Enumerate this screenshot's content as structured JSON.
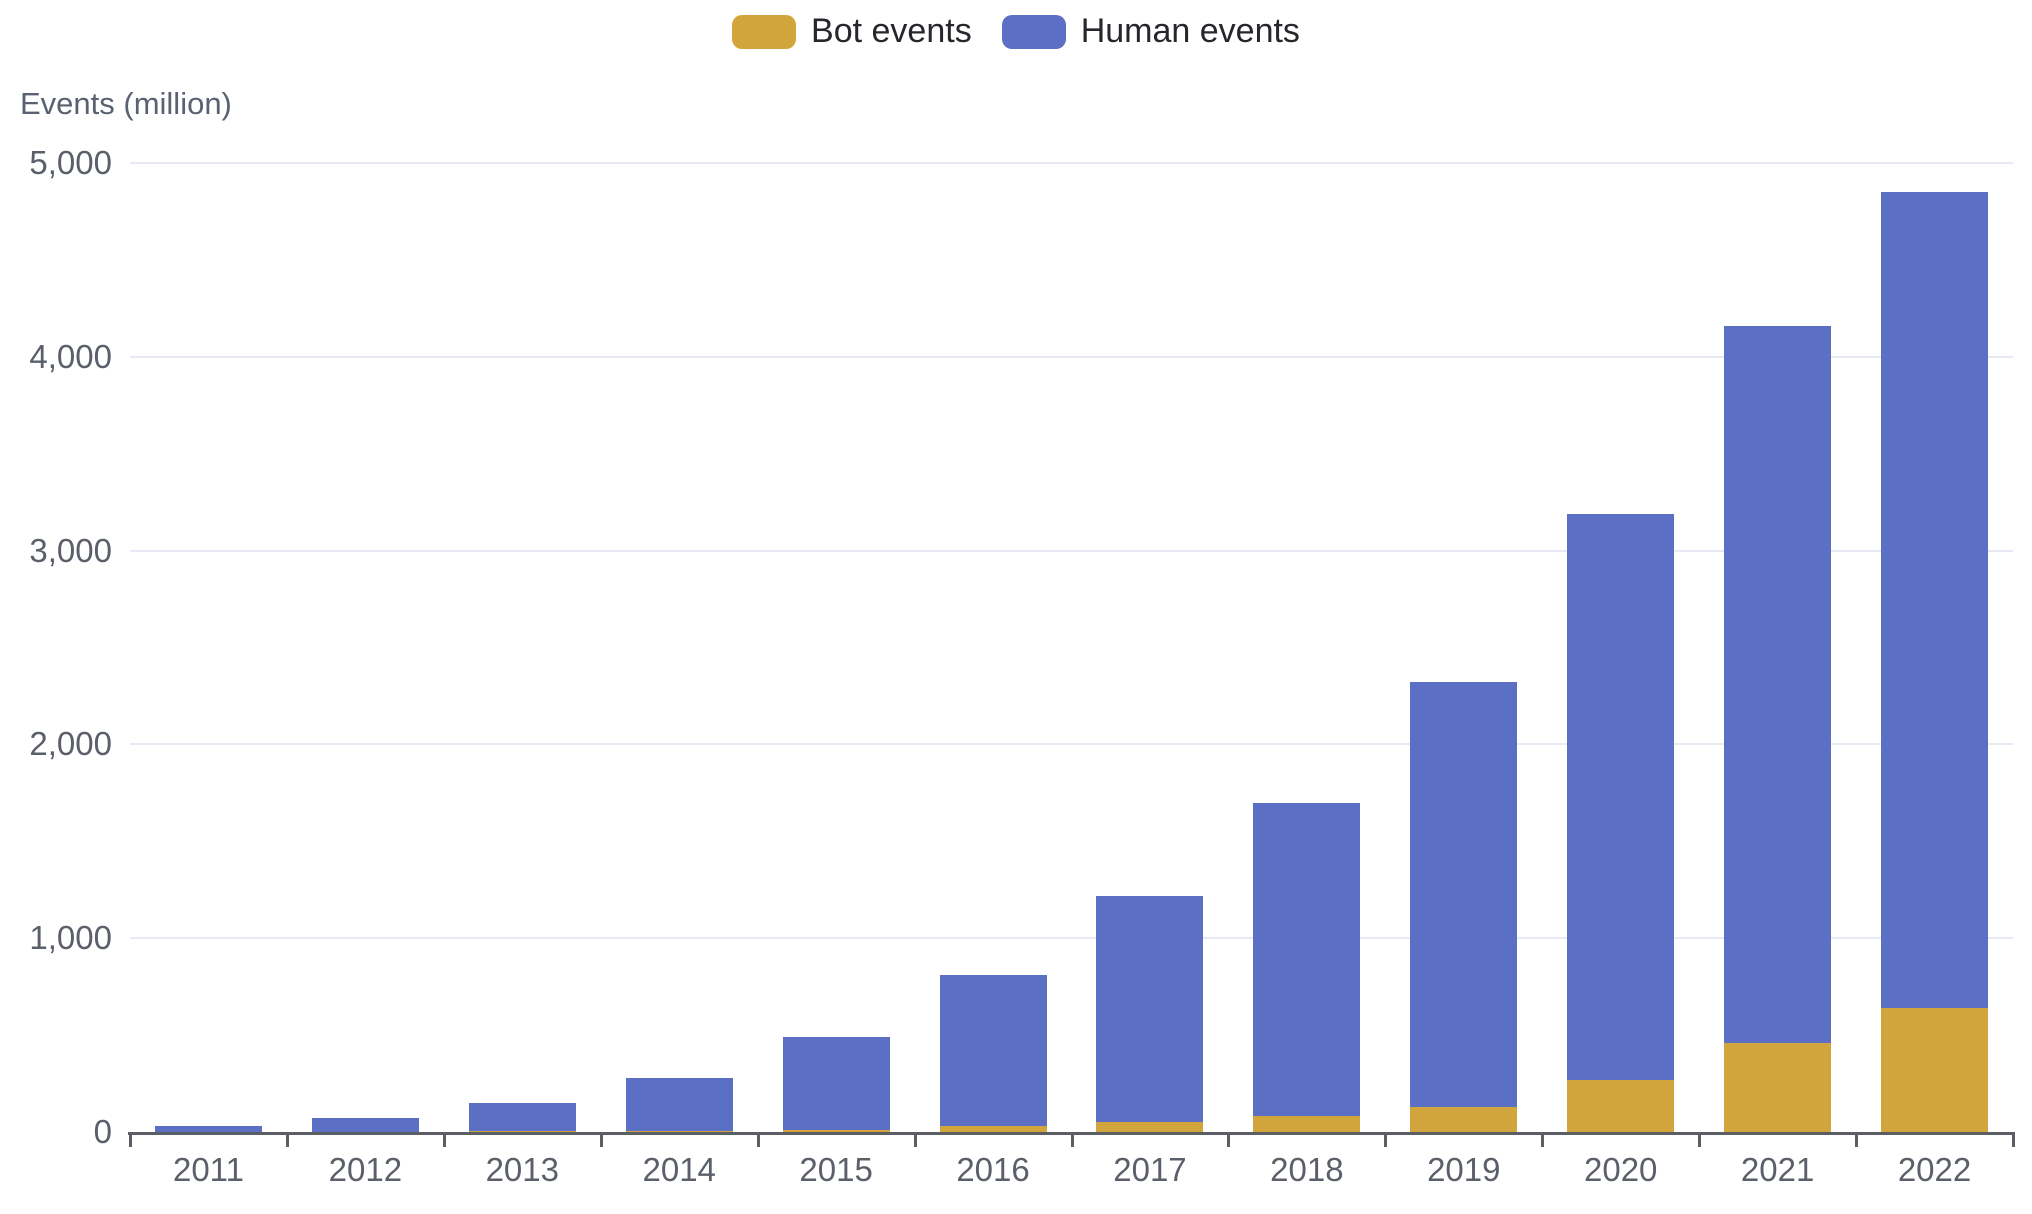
{
  "chart_data": {
    "type": "bar",
    "stacked": true,
    "title": "",
    "ylabel": "Events (million)",
    "xlabel": "",
    "categories": [
      "2011",
      "2012",
      "2013",
      "2014",
      "2015",
      "2016",
      "2017",
      "2018",
      "2019",
      "2020",
      "2021",
      "2022"
    ],
    "series": [
      {
        "name": "Bot events",
        "color": "#D2A43C",
        "values": [
          1,
          2,
          3,
          5,
          10,
          30,
          50,
          80,
          130,
          270,
          460,
          640
        ]
      },
      {
        "name": "Human events",
        "color": "#5B70C4",
        "values": [
          29,
          68,
          147,
          275,
          480,
          780,
          1170,
          1620,
          2190,
          2920,
          3700,
          4210
        ]
      }
    ],
    "stacked_totals": [
      30,
      70,
      150,
      280,
      490,
      810,
      1220,
      1700,
      2320,
      3190,
      4160,
      4850
    ],
    "y_ticks": [
      {
        "value": 0,
        "label": "0"
      },
      {
        "value": 1000,
        "label": "1,000"
      },
      {
        "value": 2000,
        "label": "2,000"
      },
      {
        "value": 3000,
        "label": "3,000"
      },
      {
        "value": 4000,
        "label": "4,000"
      },
      {
        "value": 5000,
        "label": "5,000"
      }
    ],
    "ylim": [
      0,
      5000
    ],
    "grid": true,
    "legend_position": "top-center"
  },
  "colors": {
    "grid": "#E7EAF5",
    "axis": "#5B5E64",
    "tick_label": "#5A5F6A",
    "legend_text": "#25272C",
    "axis_name": "#5A6170",
    "background": "#FFFFFF"
  }
}
